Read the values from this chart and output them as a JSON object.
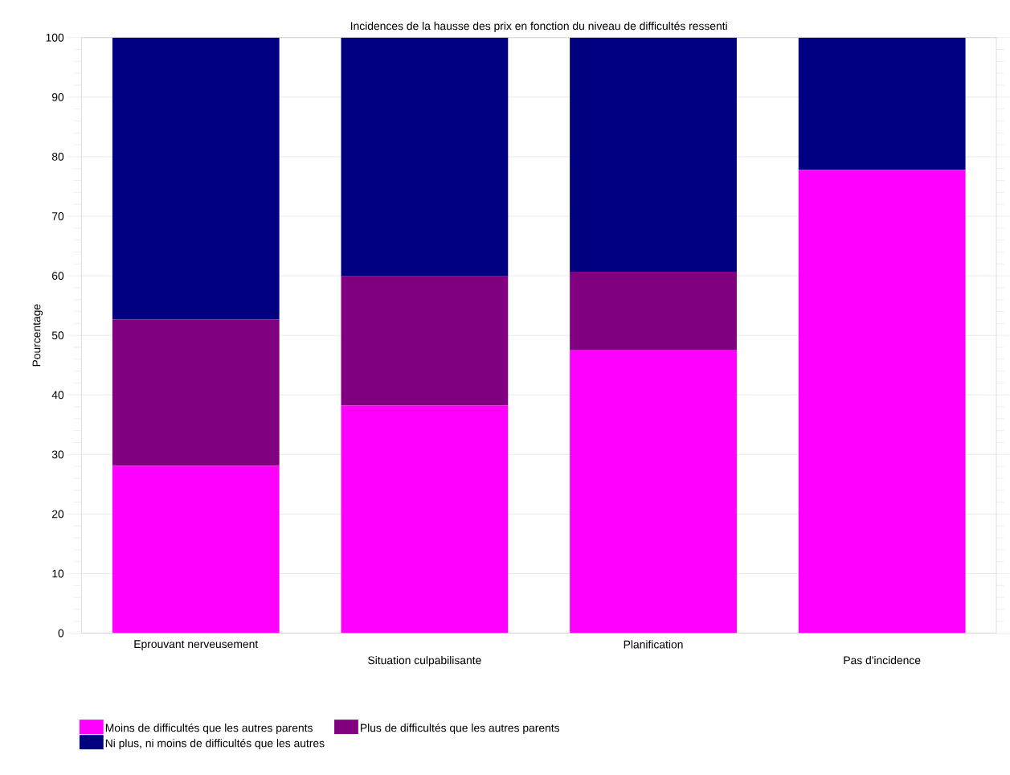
{
  "chart_data": {
    "type": "bar",
    "title": "Incidences de la hausse des prix en fonction du niveau de difficultés ressenti",
    "ylabel": "Pourcentage",
    "categories": [
      "Eprouvant nerveusement",
      "Situation culpabilisante",
      "Planification",
      "Pas d'incidence"
    ],
    "series": [
      {
        "name": "Moins de difficultés que les autres parents",
        "color": "#ff00ff",
        "values": [
          28.1,
          38.2,
          47.5,
          77.8
        ]
      },
      {
        "name": "Plus de difficultés que les autres parents",
        "color": "#800080",
        "values": [
          24.6,
          21.7,
          13.2,
          0
        ]
      },
      {
        "name": "Ni plus, ni moins de difficultés que les autres",
        "color": "#000080",
        "values": [
          47.3,
          40.1,
          39.3,
          22.2
        ]
      }
    ],
    "stacked": true,
    "ylim": [
      0,
      100
    ],
    "yticks": [
      0,
      10,
      20,
      30,
      40,
      50,
      60,
      70,
      80,
      90,
      100
    ],
    "grid": "y",
    "legend": "bottom"
  }
}
